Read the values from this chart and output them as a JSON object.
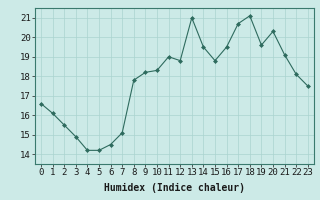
{
  "x": [
    0,
    1,
    2,
    3,
    4,
    5,
    6,
    7,
    8,
    9,
    10,
    11,
    12,
    13,
    14,
    15,
    16,
    17,
    18,
    19,
    20,
    21,
    22,
    23
  ],
  "y": [
    16.6,
    16.1,
    15.5,
    14.9,
    14.2,
    14.2,
    14.5,
    15.1,
    17.8,
    18.2,
    18.3,
    19.0,
    18.8,
    21.0,
    19.5,
    18.8,
    19.5,
    20.7,
    21.1,
    19.6,
    20.3,
    19.1,
    18.1,
    17.5
  ],
  "line_color": "#2e6b5e",
  "marker": "D",
  "marker_size": 2,
  "bg_color": "#cceae7",
  "grid_color": "#aad4d0",
  "xlabel": "Humidex (Indice chaleur)",
  "ylim": [
    13.5,
    21.5
  ],
  "xlim": [
    -0.5,
    23.5
  ],
  "yticks": [
    14,
    15,
    16,
    17,
    18,
    19,
    20,
    21
  ],
  "xticks": [
    0,
    1,
    2,
    3,
    4,
    5,
    6,
    7,
    8,
    9,
    10,
    11,
    12,
    13,
    14,
    15,
    16,
    17,
    18,
    19,
    20,
    21,
    22,
    23
  ],
  "xlabel_fontsize": 7,
  "tick_fontsize": 6.5,
  "font_family": "monospace"
}
